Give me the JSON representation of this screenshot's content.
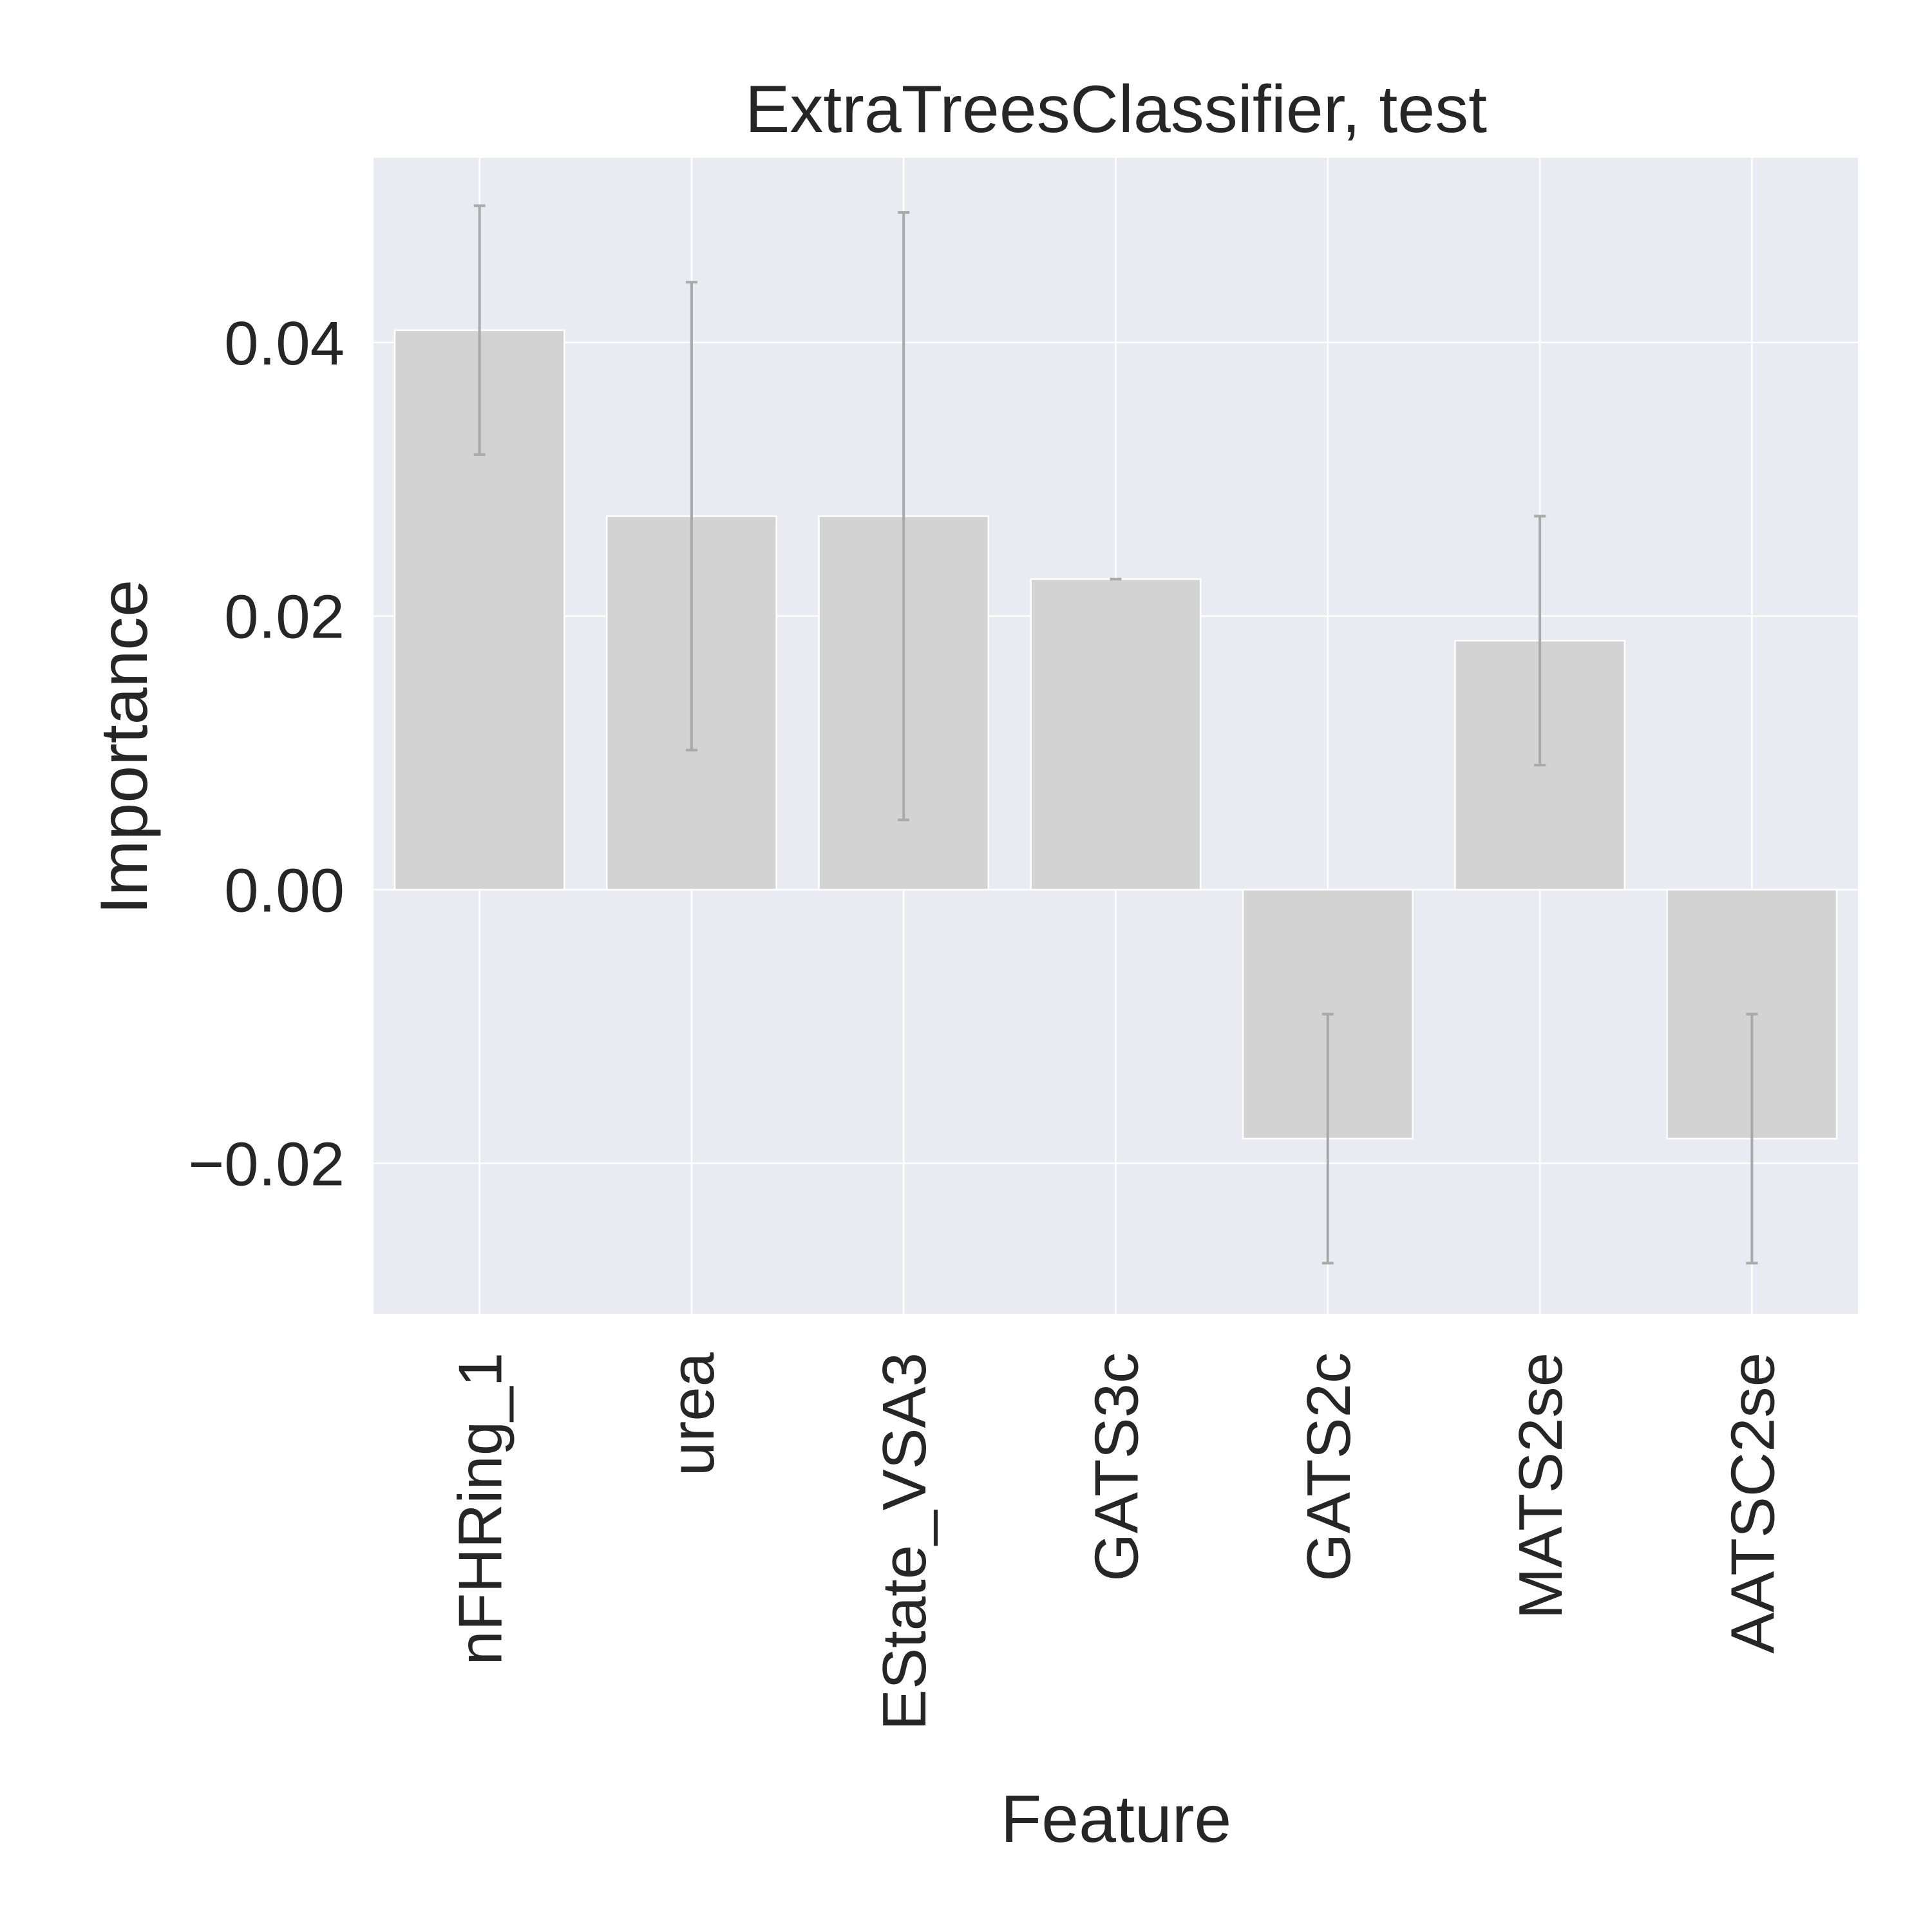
{
  "chart_data": {
    "type": "bar",
    "title": "ExtraTreesClassifier, test",
    "xlabel": "Feature",
    "ylabel": "Importance",
    "categories": [
      "nFHRing_1",
      "urea",
      "EState_VSA3",
      "GATS3c",
      "GATS2c",
      "MATS2se",
      "AATSC2se"
    ],
    "values": [
      0.0409,
      0.0273,
      0.0273,
      0.0227,
      -0.0182,
      0.0182,
      -0.0182
    ],
    "error": [
      0.0091,
      0.0171,
      0.0222,
      0.0,
      0.0091,
      0.0091,
      0.0091
    ],
    "ylim": [
      -0.031,
      0.0535
    ],
    "yticks": [
      -0.02,
      0.0,
      0.02,
      0.04
    ],
    "ytick_labels": [
      "−0.02",
      "0.00",
      "0.02",
      "0.04"
    ],
    "grid": true,
    "colors": {
      "plot_background": "#eaeaf2",
      "grid": "#ffffff",
      "bar_fill": "#d3d3d3",
      "bar_edge": "#ffffff",
      "error_bar": "#a9a9a9",
      "text": "#262626"
    }
  }
}
